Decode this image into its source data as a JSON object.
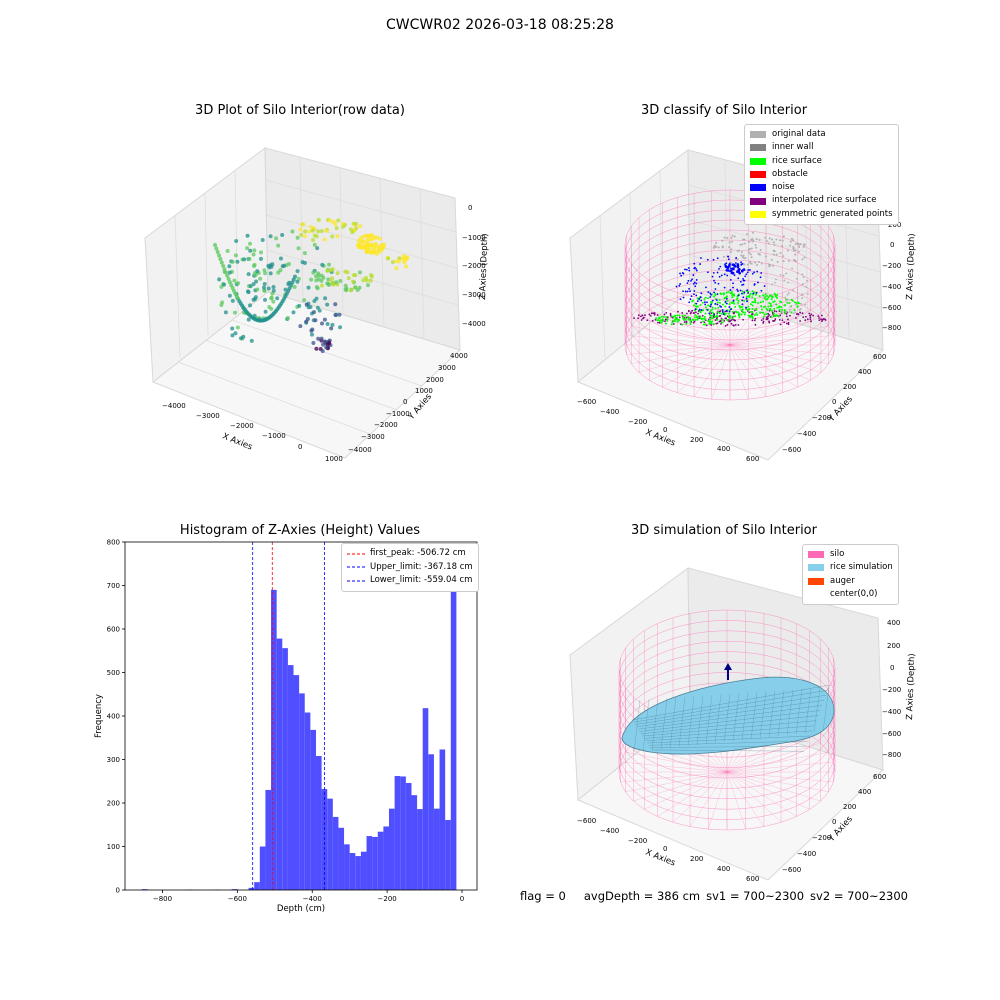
{
  "figure_title": "CWCWR02 2026-03-18 08:25:28",
  "status_line": {
    "flag": "flag = 0",
    "avg_depth": "avgDepth = 386 cm",
    "sv1": "sv1 = 700~2300",
    "sv2": "sv2 = 700~2300"
  },
  "colors": {
    "histogram_bar": "#4f4fff",
    "first_peak_line": "#ff0000",
    "limit_lines": "#0000ff",
    "silo": "#ff69b4",
    "rice_simulation": "#87ceeb",
    "auger": "#ff4500",
    "original_data": "#b0b0b0",
    "inner_wall": "#808080",
    "rice_surface": "#00ff00",
    "obstacle": "#ff0000",
    "noise": "#0000ff",
    "interpolated_rice_surface": "#800080",
    "symmetric_generated_points": "#ffff00"
  },
  "chart_data": [
    {
      "type": "scatter",
      "projection": "3d",
      "title": "3D Plot of Silo Interior(row data)",
      "xlabel": "X Axies",
      "ylabel": "Y Axies",
      "zlabel": "Z Axies (Depth)",
      "x_ticks": [
        "−4000",
        "−3000",
        "−2000",
        "−1000",
        "0",
        "1000"
      ],
      "y_ticks": [
        "4000",
        "3000",
        "2000",
        "1000",
        "0",
        "−1000",
        "−2000",
        "−3000",
        "−4000"
      ],
      "z_ticks": [
        "0",
        "−1000",
        "−2000",
        "−3000",
        "−4000"
      ],
      "colormap": "viridis"
    },
    {
      "type": "scatter",
      "projection": "3d",
      "title": "3D classify of Silo Interior",
      "xlabel": "X Axies",
      "ylabel": "Y Axies",
      "zlabel": "Z Axies (Depth)",
      "x_ticks": [
        "−600",
        "−400",
        "−200",
        "0",
        "200",
        "400",
        "600"
      ],
      "y_ticks": [
        "600",
        "400",
        "200",
        "0",
        "−200",
        "−400",
        "−600"
      ],
      "z_ticks": [
        "200",
        "0",
        "−200",
        "−400",
        "−600",
        "−800"
      ],
      "legend": [
        "original data",
        "inner wall",
        "rice surface",
        "obstacle",
        "noise",
        "interpolated rice surface",
        "symmetric generated points"
      ],
      "legend_position": "upper-right"
    },
    {
      "type": "bar",
      "title": "Histogram of Z-Axies (Height) Values",
      "xlabel": "Depth (cm)",
      "ylabel": "Frequency",
      "xlim": [
        -900,
        40
      ],
      "ylim": [
        0,
        800
      ],
      "x_ticks": [
        -800,
        -600,
        -400,
        -200,
        0
      ],
      "y_ticks": [
        0,
        100,
        200,
        300,
        400,
        500,
        600,
        700,
        800
      ],
      "bin_width": 15,
      "bins": [
        [
          -855,
          2
        ],
        [
          -735,
          1
        ],
        [
          -660,
          1
        ],
        [
          -615,
          2
        ],
        [
          -570,
          5
        ],
        [
          -555,
          18
        ],
        [
          -540,
          100
        ],
        [
          -525,
          230
        ],
        [
          -510,
          690
        ],
        [
          -495,
          578
        ],
        [
          -480,
          556
        ],
        [
          -465,
          517
        ],
        [
          -450,
          494
        ],
        [
          -435,
          452
        ],
        [
          -420,
          408
        ],
        [
          -405,
          368
        ],
        [
          -390,
          308
        ],
        [
          -375,
          232
        ],
        [
          -360,
          210
        ],
        [
          -345,
          168
        ],
        [
          -330,
          143
        ],
        [
          -315,
          105
        ],
        [
          -300,
          85
        ],
        [
          -285,
          78
        ],
        [
          -270,
          88
        ],
        [
          -255,
          124
        ],
        [
          -240,
          122
        ],
        [
          -225,
          134
        ],
        [
          -210,
          146
        ],
        [
          -195,
          187
        ],
        [
          -180,
          262
        ],
        [
          -165,
          261
        ],
        [
          -150,
          246
        ],
        [
          -135,
          218
        ],
        [
          -120,
          186
        ],
        [
          -105,
          418
        ],
        [
          -90,
          312
        ],
        [
          -75,
          187
        ],
        [
          -60,
          323
        ],
        [
          -45,
          161
        ],
        [
          -30,
          762
        ]
      ],
      "lines": [
        {
          "label": "first_peak: -506.72 cm",
          "x": -506.72,
          "style": "dashed",
          "color_key": "first_peak_line"
        },
        {
          "label": "Upper_limit: -367.18 cm",
          "x": -367.18,
          "style": "dashed",
          "color_key": "limit_lines"
        },
        {
          "label": "Lower_limit: -559.04 cm",
          "x": -559.04,
          "style": "dashed",
          "color_key": "limit_lines"
        }
      ],
      "legend_position": "upper-right"
    },
    {
      "type": "area",
      "projection": "3d",
      "title": "3D simulation of Silo Interior",
      "xlabel": "X Axies",
      "ylabel": "Y Axies",
      "zlabel": "Z Axies (Depth)",
      "x_ticks": [
        "−600",
        "−400",
        "−200",
        "0",
        "200",
        "400",
        "600"
      ],
      "y_ticks": [
        "600",
        "400",
        "200",
        "0",
        "−200",
        "−400",
        "−600"
      ],
      "z_ticks": [
        "400",
        "200",
        "0",
        "−200",
        "−400",
        "−600",
        "−800"
      ],
      "legend": [
        "silo",
        "rice simulation",
        "auger",
        "center(0,0)"
      ],
      "legend_position": "upper-right"
    }
  ]
}
